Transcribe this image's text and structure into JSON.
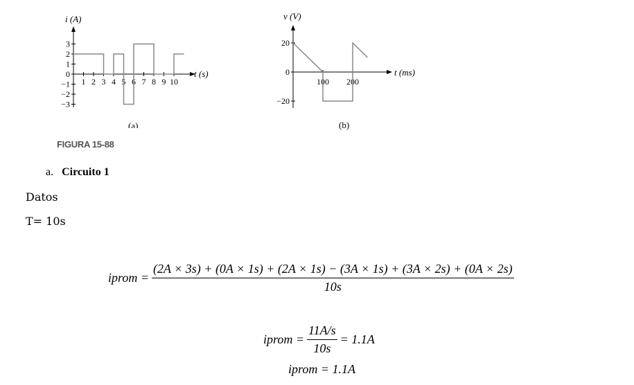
{
  "figure": {
    "graph_a": {
      "y_label": "i (A)",
      "y_ticks": [
        "3",
        "2",
        "1",
        "0",
        "−1",
        "−2",
        "−3"
      ],
      "x_ticks": [
        "1",
        "2",
        "3",
        "4",
        "5",
        "6",
        "7",
        "8",
        "9",
        "10"
      ],
      "x_label": "t (s)",
      "sublabel": "(a)",
      "waveform": [
        [
          0,
          2
        ],
        [
          3,
          2
        ],
        [
          3,
          0
        ],
        [
          4,
          0
        ],
        [
          4,
          2
        ],
        [
          5,
          2
        ],
        [
          5,
          -3
        ],
        [
          6,
          -3
        ],
        [
          6,
          3
        ],
        [
          8,
          3
        ],
        [
          8,
          0
        ],
        [
          10,
          0
        ],
        [
          10,
          2
        ],
        [
          11,
          2
        ]
      ]
    },
    "graph_b": {
      "y_label": "v (V)",
      "y_ticks": [
        "20",
        "0",
        "−20"
      ],
      "x_ticks": [
        "100",
        "200"
      ],
      "x_label": "t (ms)",
      "sublabel": "(b)",
      "waveform": [
        [
          0,
          20
        ],
        [
          100,
          0
        ],
        [
          100,
          -20
        ],
        [
          200,
          -20
        ],
        [
          200,
          20
        ],
        [
          250,
          10
        ]
      ]
    },
    "caption": "FIGURA 15-88"
  },
  "section": {
    "number": "a.",
    "title": "Circuito 1"
  },
  "datos_label": "Datos",
  "period": "T= 10s",
  "eq1": {
    "lhs": "iprom =",
    "numerator": "(2A × 3s) + (0A × 1s) + (2A × 1s) − (3A × 1s) + (3A × 2s) + (0A × 2s)",
    "denominator": "10s"
  },
  "eq2": {
    "lhs": "iprom =",
    "numerator": "11A/s",
    "denominator": "10s",
    "rhs": "= 1.1A"
  },
  "eq3": "iprom = 1.1A"
}
